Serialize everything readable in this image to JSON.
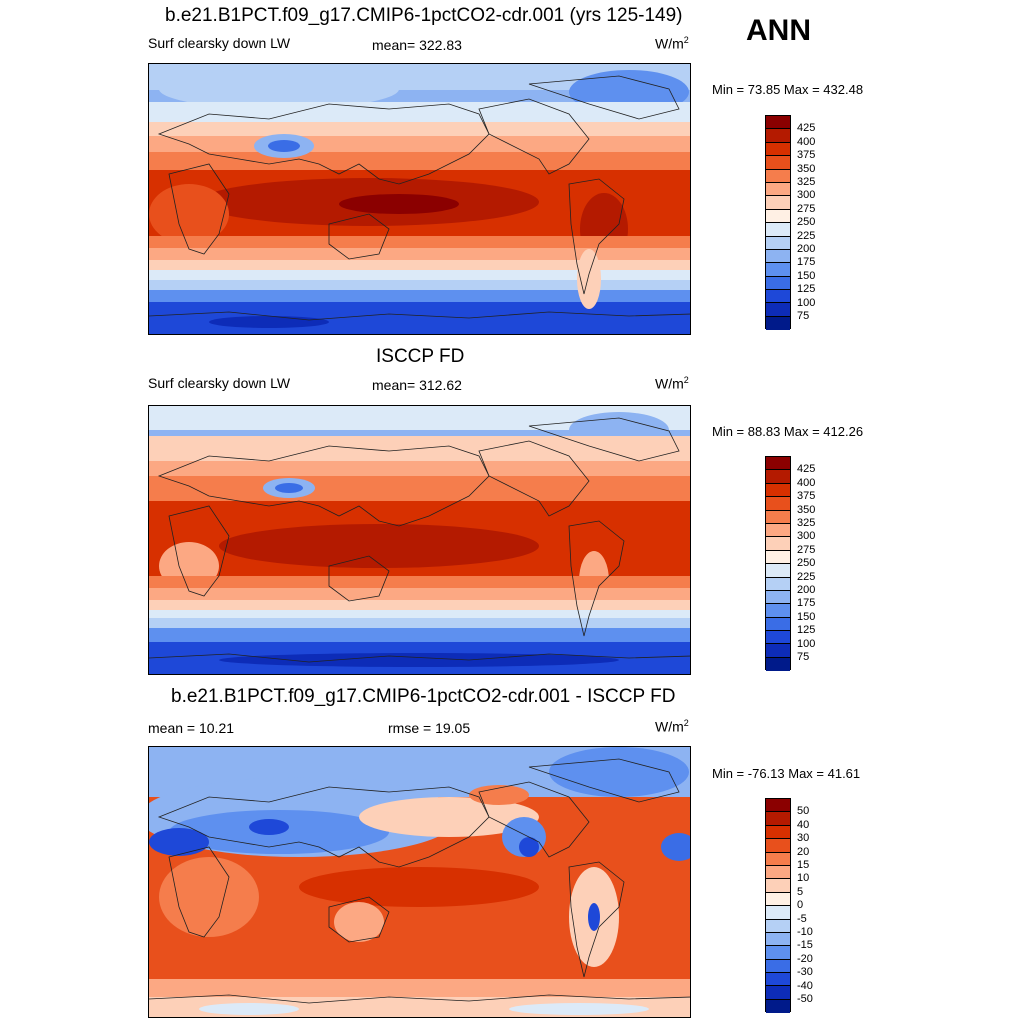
{
  "season": "ANN",
  "panels": [
    {
      "title": "b.e21.B1PCT.f09_g17.CMIP6-1pctCO2-cdr.001 (yrs 125-149)",
      "left": "Surf clearsky down LW",
      "center": "mean= 322.83",
      "units_base": "W/m",
      "units_sup": "2",
      "minmax": "Min =  73.85 Max = 432.48",
      "kind": "model"
    },
    {
      "title": "ISCCP FD",
      "left": "Surf clearsky down LW",
      "center": "mean= 312.62",
      "units_base": "W/m",
      "units_sup": "2",
      "minmax": "Min =  88.83 Max = 412.26",
      "kind": "obs"
    },
    {
      "title": "b.e21.B1PCT.f09_g17.CMIP6-1pctCO2-cdr.001 - ISCCP FD",
      "left": "mean =  10.21",
      "center": "rmse =  19.05",
      "units_base": "W/m",
      "units_sup": "2",
      "minmax": "Min = -76.13 Max =  41.61",
      "kind": "diff"
    }
  ],
  "colorbar_abs": {
    "labels": [
      "425",
      "400",
      "375",
      "350",
      "325",
      "300",
      "275",
      "250",
      "225",
      "200",
      "175",
      "150",
      "125",
      "100",
      "75"
    ],
    "colors": [
      "#8b0000",
      "#b41a00",
      "#d73000",
      "#e8501c",
      "#f57d4c",
      "#fca883",
      "#fdd0b8",
      "#fff0e4",
      "#dceaf8",
      "#b5d0f5",
      "#8db3f2",
      "#5e90ef",
      "#3a6de6",
      "#1e48d8",
      "#0d2cb8",
      "#001a8a"
    ]
  },
  "colorbar_diff": {
    "labels": [
      "50",
      "40",
      "30",
      "20",
      "15",
      "10",
      "5",
      "0",
      "-5",
      "-10",
      "-15",
      "-20",
      "-30",
      "-40",
      "-50"
    ],
    "colors": [
      "#8b0000",
      "#b41a00",
      "#d73000",
      "#e8501c",
      "#f57d4c",
      "#fca883",
      "#fdd0b8",
      "#fff0e4",
      "#dceaf8",
      "#b5d0f5",
      "#8db3f2",
      "#5e90ef",
      "#3a6de6",
      "#1e48d8",
      "#0d2cb8",
      "#001a8a"
    ]
  }
}
